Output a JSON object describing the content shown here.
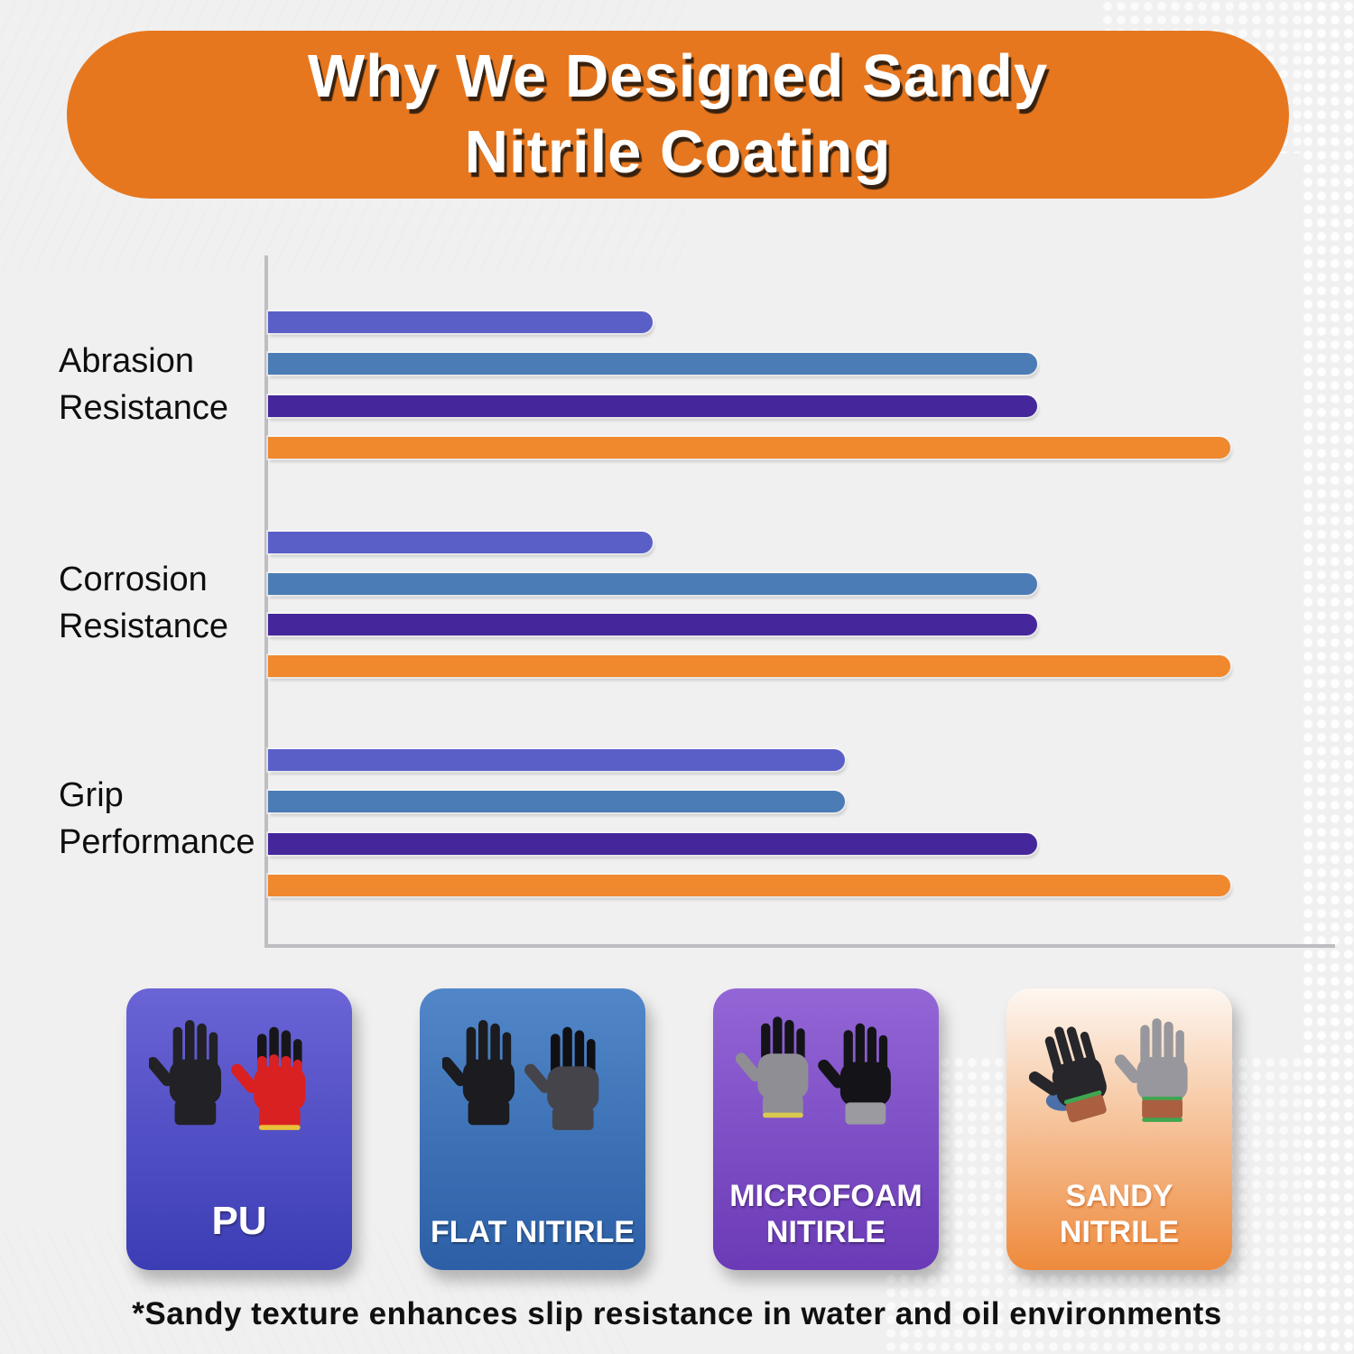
{
  "page": {
    "title": {
      "text": "Why We Designed Sandy Nitrile Coating",
      "line1": "Why We Designed Sandy",
      "line2": "Nitrile Coating",
      "banner_color": "#E6771F",
      "text_color": "#FFFFFF"
    },
    "footnote": "*Sandy texture enhances slip resistance in water and oil environments",
    "background_color": "#F1F0F0"
  },
  "chart_data": {
    "type": "bar",
    "orientation": "horizontal",
    "title": "",
    "xlabel": "",
    "ylabel": "",
    "xlim": [
      0,
      10
    ],
    "grid": false,
    "axis_color": "#BDBDC2",
    "legend_position": "bottom cards",
    "categories": [
      "Abrasion Resistance",
      "Corrosion Resistance",
      "Grip Performance"
    ],
    "category_label_lines": [
      [
        "Abrasion",
        "Resistance"
      ],
      [
        "Corrosion",
        "Resistance"
      ],
      [
        "Grip",
        "Performance"
      ]
    ],
    "series": [
      {
        "name": "PU",
        "color": "#5A5FC8",
        "values": [
          3.6,
          3.6,
          5.4
        ]
      },
      {
        "name": "Flat Nitirle",
        "color": "#4B7CB5",
        "values": [
          7.2,
          7.2,
          5.4
        ]
      },
      {
        "name": "Microfoam Nitirle",
        "color": "#45279B",
        "values": [
          7.2,
          7.2,
          7.2
        ]
      },
      {
        "name": "Sandy Nitrile",
        "color": "#F0882E",
        "values": [
          9.0,
          9.0,
          9.0
        ]
      }
    ]
  },
  "cards": [
    {
      "label": "PU",
      "line1": "PU",
      "line2": "",
      "bg_top": "#6A64D6",
      "bg_bottom": "#3C3DB4"
    },
    {
      "label": "FLAT NITIRLE",
      "line1": "FLAT NITIRLE",
      "line2": "",
      "bg_top": "#5187C8",
      "bg_bottom": "#2C5FA6"
    },
    {
      "label": "MICROFOAM NITIRLE",
      "line1": "MICROFOAM",
      "line2": "NITIRLE",
      "bg_top": "#9366D6",
      "bg_bottom": "#6B3AB6"
    },
    {
      "label": "SANDY NITRILE",
      "line1": "SANDY",
      "line2": "NITRILE",
      "bg_top": "#FDF7F1",
      "bg_bottom": "#EE8A3C"
    }
  ]
}
